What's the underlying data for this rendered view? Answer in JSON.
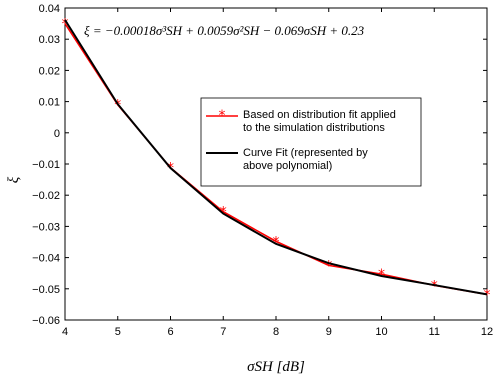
{
  "chart_data": {
    "type": "line",
    "title": "",
    "annotation": "ξ = −0.00018σ³SH + 0.0059σ²SH − 0.069σSH + 0.23",
    "xlabel": "σSH [dB]",
    "ylabel": "ξ",
    "xlim": [
      4,
      12
    ],
    "ylim": [
      -0.06,
      0.04
    ],
    "xticks": [
      4,
      5,
      6,
      7,
      8,
      9,
      10,
      11,
      12
    ],
    "xtick_labels": [
      "4",
      "5",
      "6",
      "7",
      "8",
      "9",
      "10",
      "11",
      "12"
    ],
    "yticks": [
      -0.06,
      -0.05,
      -0.04,
      -0.03,
      -0.02,
      -0.01,
      0,
      0.01,
      0.02,
      0.03,
      0.04
    ],
    "ytick_labels": [
      "−0.06",
      "−0.05",
      "−0.04",
      "−0.03",
      "−0.02",
      "−0.01",
      "0",
      "0.01",
      "0.02",
      "0.03",
      "0.04"
    ],
    "grid": false,
    "legend_position": "center-right",
    "series": [
      {
        "name": "Based on distribution fit applied to the simulation distributions",
        "legend_lines": [
          "Based on distribution fit applied",
          "to the simulation distributions"
        ],
        "color": "#ff0000",
        "marker": "asterisk",
        "x": [
          4,
          5,
          6,
          7,
          8,
          9,
          10,
          11,
          12
        ],
        "y": [
          0.035,
          0.009,
          -0.0112,
          -0.0253,
          -0.0348,
          -0.0425,
          -0.0453,
          -0.0489,
          -0.0518
        ]
      },
      {
        "name": "Curve Fit (represented by above polynomial)",
        "legend_lines": [
          "Curve Fit (represented by",
          "above polynomial)"
        ],
        "color": "#000000",
        "marker": "none",
        "x": [
          4,
          5,
          6,
          7,
          8,
          9,
          10,
          11,
          12
        ],
        "y": [
          0.0362,
          0.0092,
          -0.0113,
          -0.0259,
          -0.0356,
          -0.0418,
          -0.0459,
          -0.0488,
          -0.0518
        ]
      }
    ]
  }
}
